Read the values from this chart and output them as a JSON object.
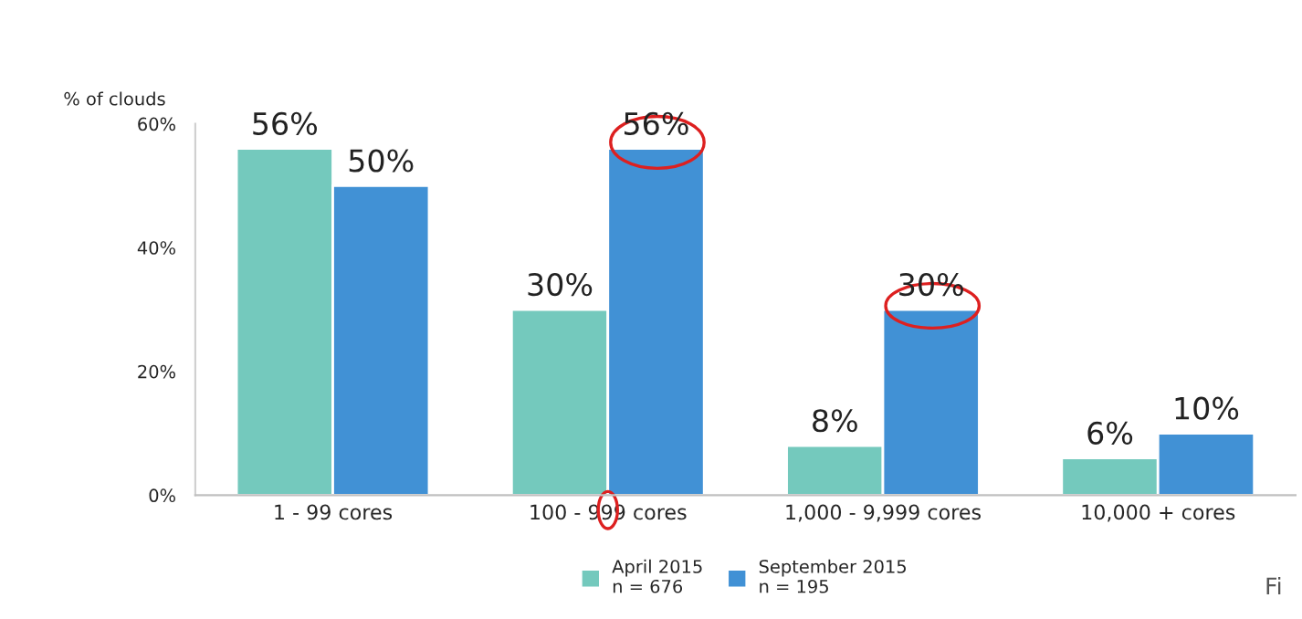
{
  "chart_data": {
    "type": "bar",
    "ylabel": "% of clouds",
    "categories": [
      "1 - 99 cores",
      "100 - 999 cores",
      "1,000 - 9,999 cores",
      "10,000 + cores"
    ],
    "series": [
      {
        "name": "April 2015\nn = 676",
        "color": "#74c9bd",
        "values": [
          56,
          30,
          8,
          6
        ],
        "value_labels": [
          "56%",
          "30%",
          "8%",
          "6%"
        ]
      },
      {
        "name": "September 2015\nn = 195",
        "color": "#4191d5",
        "values": [
          50,
          56,
          30,
          10
        ],
        "value_labels": [
          "50%",
          "56%",
          "30%",
          "10%"
        ]
      }
    ],
    "ylim": [
      0,
      60
    ],
    "yticks": [
      {
        "value": 0,
        "label": "0%"
      },
      {
        "value": 20,
        "label": "20%"
      },
      {
        "value": 40,
        "label": "40%"
      },
      {
        "value": 60,
        "label": "60%"
      }
    ],
    "grid": false,
    "legend": "bottom",
    "annotations": [
      "Fi"
    ]
  }
}
